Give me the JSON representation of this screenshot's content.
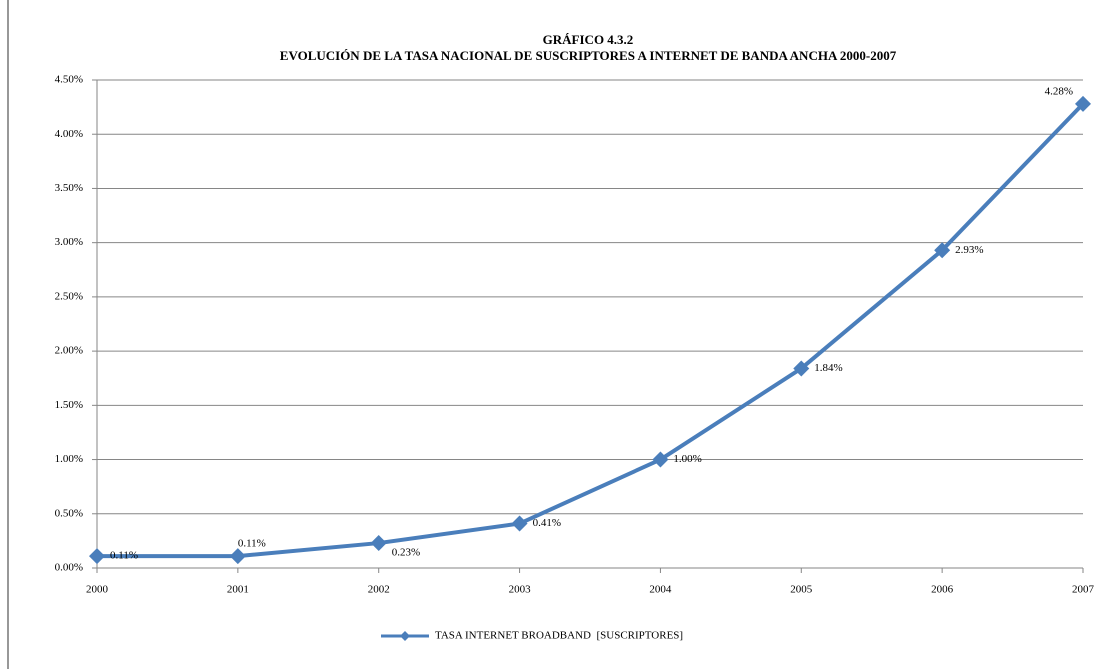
{
  "chart_data": {
    "type": "line",
    "title": "GRÁFICO 4.3.2",
    "subtitle": "EVOLUCIÓN DE LA TASA NACIONAL DE SUSCRIPTORES A INTERNET DE BANDA ANCHA 2000-2007",
    "x": [
      2000,
      2001,
      2002,
      2003,
      2004,
      2005,
      2006,
      2007
    ],
    "xlim": [
      2000,
      2007
    ],
    "xticks": [
      2000,
      2001,
      2002,
      2003,
      2004,
      2005,
      2006,
      2007
    ],
    "ylim": [
      0,
      4.5
    ],
    "yticks": [
      {
        "value": 0,
        "label": "0.00%"
      },
      {
        "value": 0.5,
        "label": "0.50%"
      },
      {
        "value": 1,
        "label": "1.00%"
      },
      {
        "value": 1.5,
        "label": "1.50%"
      },
      {
        "value": 2,
        "label": "2.00%"
      },
      {
        "value": 2.5,
        "label": "2.50%"
      },
      {
        "value": 3,
        "label": "3.00%"
      },
      {
        "value": 3.5,
        "label": "3.50%"
      },
      {
        "value": 4,
        "label": "4.00%"
      },
      {
        "value": 4.5,
        "label": "4.50%"
      }
    ],
    "grid": true,
    "legend": "bottom",
    "series": [
      {
        "name": "TASA INTERNET BROADBAND  [SUSCRIPTORES]",
        "color": "#4a7ebb",
        "values": [
          0.11,
          0.11,
          0.23,
          0.41,
          1.0,
          1.84,
          2.93,
          4.28
        ],
        "value_labels": [
          "0.11%",
          "0.11%",
          "0.23%",
          "0.41%",
          "1.00%",
          "1.84%",
          "2.93%",
          "4.28%"
        ]
      }
    ]
  }
}
